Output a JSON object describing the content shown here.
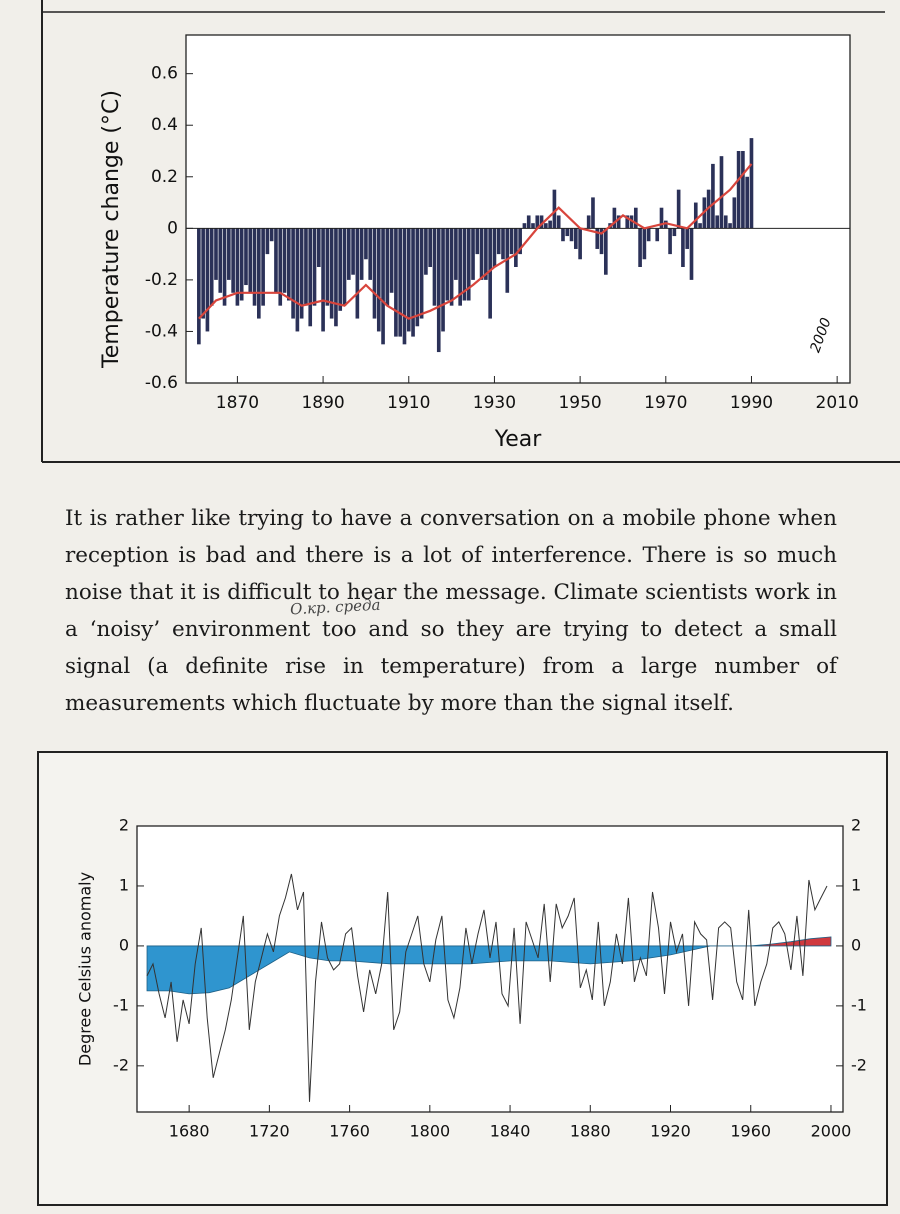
{
  "chart_data": [
    {
      "type": "bar",
      "ylabel": "Temperature change (°C)",
      "xlabel": "Year",
      "color": "#2b3158",
      "zero_line": true,
      "x": [
        1861,
        1862,
        1863,
        1864,
        1865,
        1866,
        1867,
        1868,
        1869,
        1870,
        1871,
        1872,
        1873,
        1874,
        1875,
        1876,
        1877,
        1878,
        1879,
        1880,
        1881,
        1882,
        1883,
        1884,
        1885,
        1886,
        1887,
        1888,
        1889,
        1890,
        1891,
        1892,
        1893,
        1894,
        1895,
        1896,
        1897,
        1898,
        1899,
        1900,
        1901,
        1902,
        1903,
        1904,
        1905,
        1906,
        1907,
        1908,
        1909,
        1910,
        1911,
        1912,
        1913,
        1914,
        1915,
        1916,
        1917,
        1918,
        1919,
        1920,
        1921,
        1922,
        1923,
        1924,
        1925,
        1926,
        1927,
        1928,
        1929,
        1930,
        1931,
        1932,
        1933,
        1934,
        1935,
        1936,
        1937,
        1938,
        1939,
        1940,
        1941,
        1942,
        1943,
        1944,
        1945,
        1946,
        1947,
        1948,
        1949,
        1950,
        1951,
        1952,
        1953,
        1954,
        1955,
        1956,
        1957,
        1958,
        1959,
        1960,
        1961,
        1962,
        1963,
        1964,
        1965,
        1966,
        1967,
        1968,
        1969,
        1970,
        1971,
        1972,
        1973,
        1974,
        1975,
        1976,
        1977,
        1978,
        1979,
        1980,
        1981,
        1982,
        1983,
        1984,
        1985,
        1986,
        1987,
        1988,
        1989,
        1990
      ],
      "values": [
        -0.45,
        -0.35,
        -0.4,
        -0.3,
        -0.2,
        -0.25,
        -0.3,
        -0.2,
        -0.25,
        -0.3,
        -0.28,
        -0.22,
        -0.25,
        -0.3,
        -0.35,
        -0.3,
        -0.1,
        -0.05,
        -0.25,
        -0.3,
        -0.25,
        -0.28,
        -0.35,
        -0.4,
        -0.35,
        -0.3,
        -0.38,
        -0.3,
        -0.15,
        -0.4,
        -0.3,
        -0.35,
        -0.38,
        -0.32,
        -0.3,
        -0.2,
        -0.18,
        -0.35,
        -0.2,
        -0.12,
        -0.2,
        -0.35,
        -0.4,
        -0.45,
        -0.3,
        -0.25,
        -0.42,
        -0.42,
        -0.45,
        -0.4,
        -0.42,
        -0.38,
        -0.35,
        -0.18,
        -0.15,
        -0.3,
        -0.48,
        -0.4,
        -0.28,
        -0.3,
        -0.2,
        -0.3,
        -0.28,
        -0.28,
        -0.2,
        -0.1,
        -0.2,
        -0.2,
        -0.35,
        -0.15,
        -0.1,
        -0.12,
        -0.25,
        -0.1,
        -0.15,
        -0.1,
        0.02,
        0.05,
        0.02,
        0.05,
        0.05,
        0.02,
        0.03,
        0.15,
        0.05,
        -0.05,
        -0.03,
        -0.05,
        -0.08,
        -0.12,
        0.0,
        0.05,
        0.12,
        -0.08,
        -0.1,
        -0.18,
        0.02,
        0.08,
        0.05,
        0.0,
        0.05,
        0.05,
        0.08,
        -0.15,
        -0.12,
        -0.05,
        0.0,
        -0.05,
        0.08,
        0.03,
        -0.1,
        -0.03,
        0.15,
        -0.15,
        -0.08,
        -0.2,
        0.1,
        0.02,
        0.12,
        0.15,
        0.25,
        0.05,
        0.28,
        0.05,
        0.02,
        0.12,
        0.3,
        0.3,
        0.2,
        0.35
      ],
      "line": {
        "color": "#d8453c",
        "x": [
          1861,
          1865,
          1870,
          1875,
          1880,
          1885,
          1890,
          1895,
          1900,
          1905,
          1910,
          1915,
          1920,
          1925,
          1930,
          1935,
          1940,
          1945,
          1950,
          1955,
          1960,
          1965,
          1970,
          1975,
          1980,
          1985,
          1990
        ],
        "values": [
          -0.35,
          -0.28,
          -0.25,
          -0.25,
          -0.25,
          -0.3,
          -0.28,
          -0.3,
          -0.22,
          -0.3,
          -0.35,
          -0.32,
          -0.28,
          -0.22,
          -0.15,
          -0.1,
          0.0,
          0.08,
          0.0,
          -0.02,
          0.05,
          0.0,
          0.02,
          0.0,
          0.08,
          0.15,
          0.25
        ]
      },
      "xlim": [
        1858,
        2013
      ],
      "ylim": [
        -0.6,
        0.75
      ],
      "xticks": [
        1870,
        1890,
        1910,
        1930,
        1950,
        1970,
        1990,
        2010
      ],
      "yticks": [
        -0.6,
        -0.4,
        -0.2,
        0,
        0.2,
        0.4,
        0.6
      ],
      "annotation": "2000"
    },
    {
      "type": "line",
      "ylabel": "Degree Celsius anomaly",
      "color": "#333333",
      "x": [
        1659,
        1662,
        1665,
        1668,
        1671,
        1674,
        1677,
        1680,
        1683,
        1686,
        1689,
        1692,
        1695,
        1698,
        1701,
        1704,
        1707,
        1710,
        1713,
        1716,
        1719,
        1722,
        1725,
        1728,
        1731,
        1734,
        1737,
        1740,
        1743,
        1746,
        1749,
        1752,
        1755,
        1758,
        1761,
        1764,
        1767,
        1770,
        1773,
        1776,
        1779,
        1782,
        1785,
        1788,
        1791,
        1794,
        1797,
        1800,
        1803,
        1806,
        1809,
        1812,
        1815,
        1818,
        1821,
        1824,
        1827,
        1830,
        1833,
        1836,
        1839,
        1842,
        1845,
        1848,
        1851,
        1854,
        1857,
        1860,
        1863,
        1866,
        1869,
        1872,
        1875,
        1878,
        1881,
        1884,
        1887,
        1890,
        1893,
        1896,
        1899,
        1902,
        1905,
        1908,
        1911,
        1914,
        1917,
        1920,
        1923,
        1926,
        1929,
        1932,
        1935,
        1938,
        1941,
        1944,
        1947,
        1950,
        1953,
        1956,
        1959,
        1962,
        1965,
        1968,
        1971,
        1974,
        1977,
        1980,
        1983,
        1986,
        1989,
        1992,
        1995,
        1998
      ],
      "values": [
        -0.5,
        -0.3,
        -0.8,
        -1.2,
        -0.6,
        -1.6,
        -0.9,
        -1.3,
        -0.3,
        0.3,
        -1.2,
        -2.2,
        -1.8,
        -1.4,
        -0.9,
        -0.2,
        0.5,
        -1.4,
        -0.6,
        -0.2,
        0.2,
        -0.1,
        0.5,
        0.8,
        1.2,
        0.6,
        0.9,
        -2.6,
        -0.6,
        0.4,
        -0.2,
        -0.4,
        -0.3,
        0.2,
        0.3,
        -0.5,
        -1.1,
        -0.4,
        -0.8,
        -0.3,
        0.9,
        -1.4,
        -1.1,
        -0.1,
        0.2,
        0.5,
        -0.3,
        -0.6,
        0.1,
        0.5,
        -0.9,
        -1.2,
        -0.7,
        0.3,
        -0.3,
        0.2,
        0.6,
        -0.2,
        0.4,
        -0.8,
        -1.0,
        0.3,
        -1.3,
        0.4,
        0.1,
        -0.2,
        0.7,
        -0.6,
        0.7,
        0.3,
        0.5,
        0.8,
        -0.7,
        -0.4,
        -0.9,
        0.4,
        -1.0,
        -0.6,
        0.2,
        -0.3,
        0.8,
        -0.6,
        -0.2,
        -0.5,
        0.9,
        0.3,
        -0.8,
        0.4,
        -0.1,
        0.2,
        -1.0,
        0.4,
        0.2,
        0.1,
        -0.9,
        0.3,
        0.4,
        0.3,
        -0.6,
        -0.9,
        0.6,
        -1.0,
        -0.6,
        -0.3,
        0.3,
        0.4,
        0.2,
        -0.4,
        0.5,
        -0.5,
        1.1,
        0.6,
        0.8,
        1.0
      ],
      "bands": [
        {
          "color": "#2f95cf",
          "x": [
            1659,
            1670,
            1680,
            1690,
            1700,
            1710,
            1720,
            1730,
            1740,
            1750,
            1760,
            1780,
            1800,
            1820,
            1840,
            1860,
            1880,
            1900,
            1920,
            1940,
            1960
          ],
          "values": [
            -0.75,
            -0.75,
            -0.8,
            -0.78,
            -0.7,
            -0.5,
            -0.3,
            -0.1,
            -0.2,
            -0.25,
            -0.25,
            -0.3,
            -0.3,
            -0.3,
            -0.25,
            -0.25,
            -0.3,
            -0.25,
            -0.15,
            0.0,
            0.0
          ]
        },
        {
          "color": "#d0393e",
          "x": [
            1960,
            1970,
            1980,
            1990,
            2000
          ],
          "values": [
            0,
            0.03,
            0.07,
            0.12,
            0.15
          ]
        }
      ],
      "xlim": [
        1654,
        2006
      ],
      "ylim": [
        -2.77,
        2
      ],
      "y2lim": [
        -2.77,
        2
      ],
      "xticks": [
        1680,
        1720,
        1760,
        1800,
        1840,
        1880,
        1920,
        1960,
        2000
      ],
      "yticks": [
        -2,
        -1,
        0,
        1,
        2
      ],
      "y2ticks": [
        -2,
        -1,
        0,
        1,
        2
      ]
    }
  ],
  "paragraph": "It is rather like trying to have a conversation on a mobile phone when reception is bad and there is a lot of interference. There is so much noise that it is difficult to hear the message. Climate scientists work in a ‘noisy’ environment too and so they are trying to detect a small signal (a definite rise in temperature) from a large number of measurements which fluctuate by more than the signal itself.",
  "handwritten_note": "О.кр. среда"
}
